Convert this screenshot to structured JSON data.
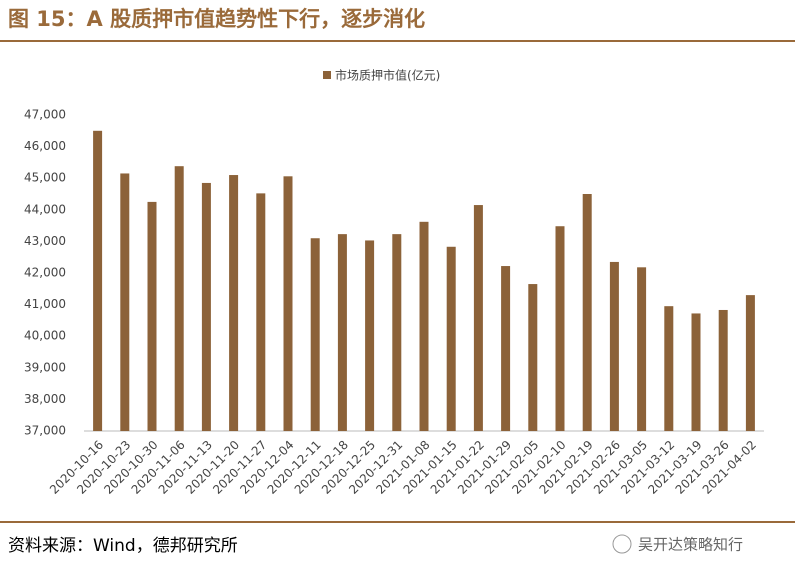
{
  "chart_data": {
    "type": "bar",
    "title": "图 15：A 股质押市值趋势性下行，逐步消化",
    "categories": [
      "2020-10-16",
      "2020-10-23",
      "2020-10-30",
      "2020-11-06",
      "2020-11-13",
      "2020-11-20",
      "2020-11-27",
      "2020-12-04",
      "2020-12-11",
      "2020-12-18",
      "2020-12-25",
      "2020-12-31",
      "2021-01-08",
      "2021-01-15",
      "2021-01-22",
      "2021-01-29",
      "2021-02-05",
      "2021-02-10",
      "2021-02-19",
      "2021-02-26",
      "2021-03-05",
      "2021-03-12",
      "2021-03-19",
      "2021-03-26",
      "2021-04-02"
    ],
    "series": [
      {
        "name": "市场质押市值(亿元)",
        "color": "#8c6239",
        "values": [
          46500,
          45150,
          44250,
          45380,
          44850,
          45100,
          44520,
          45060,
          43100,
          43230,
          43030,
          43230,
          43620,
          42830,
          44150,
          42220,
          41650,
          43480,
          44500,
          42350,
          42180,
          40950,
          40720,
          40830,
          41300
        ]
      }
    ],
    "ylim": [
      37000,
      47000
    ],
    "yticks": [
      {
        "value": 37000,
        "label": "37,000"
      },
      {
        "value": 38000,
        "label": "38,000"
      },
      {
        "value": 39000,
        "label": "39,000"
      },
      {
        "value": 40000,
        "label": "40,000"
      },
      {
        "value": 41000,
        "label": "41,000"
      },
      {
        "value": 42000,
        "label": "42,000"
      },
      {
        "value": 43000,
        "label": "43,000"
      },
      {
        "value": 44000,
        "label": "44,000"
      },
      {
        "value": 45000,
        "label": "45,000"
      },
      {
        "value": 46000,
        "label": "46,000"
      },
      {
        "value": 47000,
        "label": "47,000"
      }
    ],
    "grid": false,
    "legend": "top"
  },
  "footer": {
    "source": "资料来源：Wind，德邦研究所",
    "watermark": "吴开达策略知行"
  }
}
